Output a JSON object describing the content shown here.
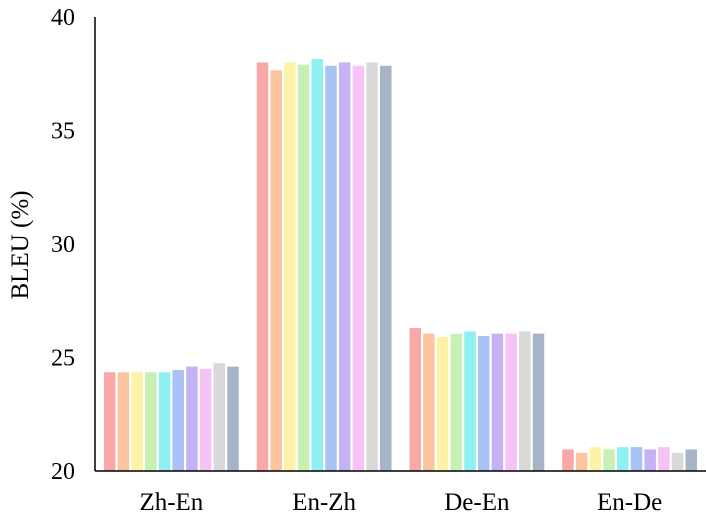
{
  "chart_data": {
    "type": "bar",
    "ylabel": "BLEU (%)",
    "xlabel": "",
    "ylim": [
      20,
      40
    ],
    "yticks": [
      20,
      25,
      30,
      35,
      40
    ],
    "grid": false,
    "legend": "none",
    "categories": [
      "Zh-En",
      "En-Zh",
      "De-En",
      "En-De"
    ],
    "series": [
      {
        "color": "#f9a8a8",
        "values": [
          24.35,
          38.0,
          26.3,
          20.95
        ]
      },
      {
        "color": "#fcc5a0",
        "values": [
          24.35,
          37.65,
          26.05,
          20.8
        ]
      },
      {
        "color": "#fdf3a6",
        "values": [
          24.35,
          38.0,
          25.9,
          21.05
        ]
      },
      {
        "color": "#c8f0b4",
        "values": [
          24.35,
          37.9,
          26.05,
          20.95
        ]
      },
      {
        "color": "#8ff0f2",
        "values": [
          24.35,
          38.15,
          26.15,
          21.05
        ]
      },
      {
        "color": "#a9c2f5",
        "values": [
          24.45,
          37.85,
          25.95,
          21.05
        ]
      },
      {
        "color": "#c3b3f5",
        "values": [
          24.6,
          38.0,
          26.05,
          20.95
        ]
      },
      {
        "color": "#f7c2f5",
        "values": [
          24.5,
          37.85,
          26.05,
          21.05
        ]
      },
      {
        "color": "#d9d9d9",
        "values": [
          24.75,
          38.0,
          26.15,
          20.8
        ]
      },
      {
        "color": "#a7b4c7",
        "values": [
          24.6,
          37.85,
          26.05,
          20.95
        ]
      }
    ]
  }
}
